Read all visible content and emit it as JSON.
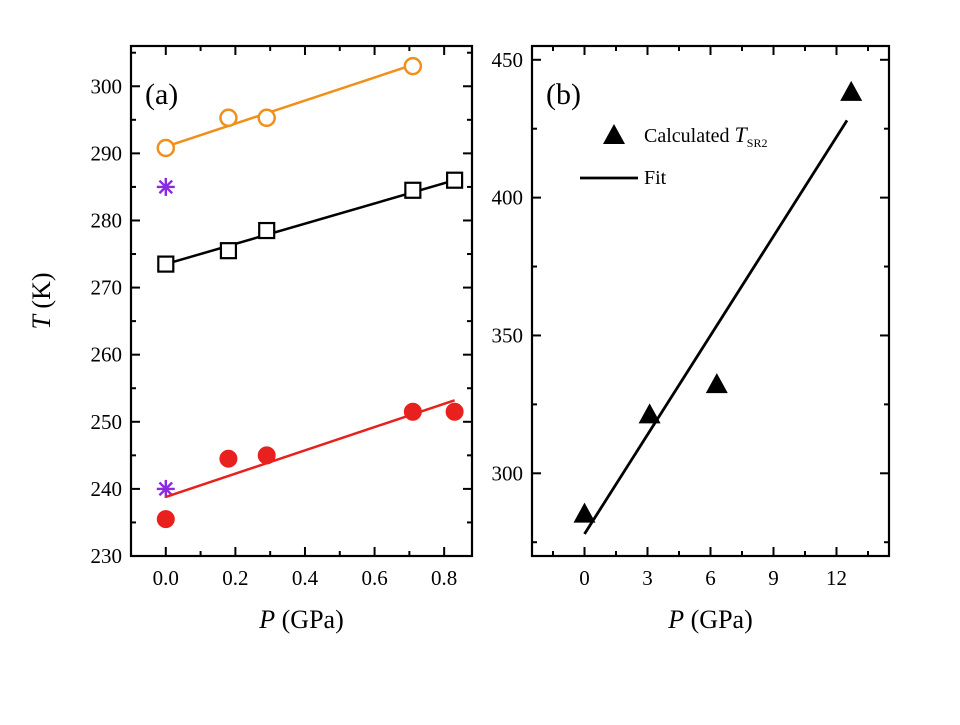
{
  "chart_data": [
    {
      "type": "scatter",
      "panel_label": "(a)",
      "xlabel": {
        "var": "P",
        "unit": " (GPa)"
      },
      "ylabel": {
        "var": "T",
        "unit": " (K)"
      },
      "xlim": [
        -0.1,
        0.88
      ],
      "ylim": [
        230,
        306
      ],
      "x_ticks": [
        0.0,
        0.2,
        0.4,
        0.6,
        0.8
      ],
      "x_tick_labels": [
        "0.0",
        "0.2",
        "0.4",
        "0.6",
        "0.8"
      ],
      "y_ticks": [
        230,
        240,
        250,
        260,
        270,
        280,
        290,
        300
      ],
      "y_tick_labels": [
        "230",
        "240",
        "250",
        "260",
        "270",
        "280",
        "290",
        "300"
      ],
      "legend": "none",
      "series": [
        {
          "marker": "open-circle",
          "color": "#f0901a",
          "x": [
            0.0,
            0.18,
            0.29,
            0.71
          ],
          "y": [
            290.8,
            295.3,
            295.3,
            303.0
          ],
          "fit": {
            "x": [
              0.0,
              0.71
            ],
            "y": [
              291.0,
              303.2
            ]
          }
        },
        {
          "marker": "open-square",
          "color": "#000000",
          "x": [
            0.0,
            0.18,
            0.29,
            0.71,
            0.83
          ],
          "y": [
            273.5,
            275.5,
            278.5,
            284.5,
            286.0
          ],
          "fit": {
            "x": [
              0.0,
              0.83
            ],
            "y": [
              273.5,
              286.0
            ]
          }
        },
        {
          "marker": "asterisk",
          "color": "#8a2be2",
          "x": [
            0.0,
            0.0
          ],
          "y": [
            285.0,
            240.0
          ]
        },
        {
          "marker": "filled-circle",
          "color": "#e8201e",
          "x": [
            0.0,
            0.18,
            0.29,
            0.71,
            0.83
          ],
          "y": [
            235.5,
            244.5,
            245.0,
            251.5,
            251.5
          ],
          "fit": {
            "x": [
              0.0,
              0.83
            ],
            "y": [
              238.8,
              253.2
            ]
          }
        }
      ]
    },
    {
      "type": "scatter",
      "panel_label": "(b)",
      "xlabel": {
        "var": "P",
        "unit": " (GPa)"
      },
      "ylabel": {
        "var": "",
        "unit": ""
      },
      "xlim": [
        -2.5,
        14.5
      ],
      "ylim": [
        270,
        455
      ],
      "x_ticks": [
        0,
        3,
        6,
        9,
        12
      ],
      "x_tick_labels": [
        "0",
        "3",
        "6",
        "9",
        "12"
      ],
      "y_ticks": [
        300,
        350,
        400,
        450
      ],
      "y_tick_labels": [
        "300",
        "350",
        "400",
        "450"
      ],
      "legend": "top-left",
      "legend_entries": [
        {
          "text": "Calculated ",
          "italic": "T",
          "subscript": "SR2",
          "marker": "filled-triangle"
        },
        {
          "text": "Fit",
          "marker": "line"
        }
      ],
      "series": [
        {
          "name": "Calculated T_SR2",
          "marker": "filled-triangle",
          "color": "#000000",
          "x": [
            0.0,
            3.1,
            6.3,
            12.7
          ],
          "y": [
            285.0,
            321.0,
            332.0,
            438.0
          ]
        },
        {
          "name": "Fit",
          "marker": "line",
          "color": "#000000",
          "x": [
            0.0,
            12.5
          ],
          "y": [
            278.0,
            428.0
          ]
        }
      ]
    }
  ]
}
